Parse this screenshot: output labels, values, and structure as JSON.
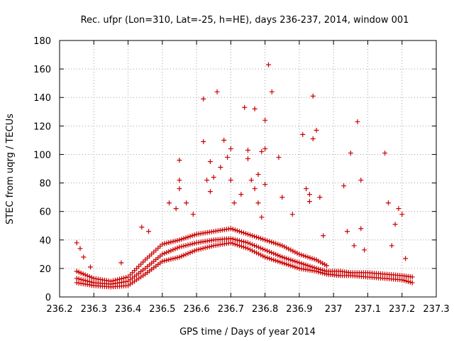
{
  "chart_data": {
    "type": "scatter",
    "title": "Rec. ufpr (Lon=310, Lat=-25, h=HE), days 236-237, 2014, window 001",
    "xlabel": "GPS time / Days of year 2014",
    "ylabel": "STEC from uqrg / TECUs",
    "xlim": [
      236.2,
      237.3
    ],
    "ylim": [
      0,
      180
    ],
    "xticks": [
      "236.2",
      "236.3",
      "236.4",
      "236.5",
      "236.6",
      "236.7",
      "236.8",
      "236.9",
      "237",
      "237.1",
      "237.2",
      "237.3"
    ],
    "yticks": [
      "0",
      "20",
      "40",
      "60",
      "80",
      "100",
      "120",
      "140",
      "160",
      "180"
    ],
    "grid": true,
    "legend": "none",
    "marker": "+",
    "color": "#cc0000",
    "bands": [
      {
        "x": [
          236.25,
          236.3,
          236.35,
          236.4,
          236.45,
          236.5,
          236.55,
          236.6,
          236.65,
          236.7,
          236.75,
          236.8,
          236.85,
          236.9,
          236.95,
          236.98,
          237.02,
          237.05,
          237.1,
          237.15,
          237.2,
          237.23
        ],
        "y": [
          10,
          8,
          7,
          8,
          16,
          25,
          28,
          33,
          36,
          38,
          34,
          28,
          24,
          20,
          18,
          16,
          15,
          15,
          14,
          13,
          12,
          10
        ]
      },
      {
        "x": [
          236.25,
          236.3,
          236.35,
          236.4,
          236.45,
          236.5,
          236.55,
          236.6,
          236.65,
          236.7,
          236.75,
          236.8,
          236.85,
          236.9,
          236.95,
          236.98,
          237.02,
          237.05,
          237.1,
          237.15,
          237.2,
          237.23
        ],
        "y": [
          13,
          10,
          9,
          11,
          20,
          30,
          35,
          38,
          40,
          41,
          38,
          33,
          28,
          24,
          20,
          18,
          18,
          17,
          17,
          16,
          15,
          14
        ]
      },
      {
        "x": [
          236.25,
          236.3,
          236.35,
          236.4,
          236.45,
          236.5,
          236.55,
          236.6,
          236.65,
          236.7,
          236.75,
          236.8,
          236.85,
          236.9,
          236.95,
          236.98
        ],
        "y": [
          18,
          13,
          11,
          14,
          26,
          37,
          40,
          44,
          46,
          48,
          44,
          40,
          36,
          30,
          26,
          22
        ]
      }
    ],
    "outliers": [
      {
        "x": 236.25,
        "y": 38
      },
      {
        "x": 236.26,
        "y": 34
      },
      {
        "x": 236.27,
        "y": 28
      },
      {
        "x": 236.29,
        "y": 21
      },
      {
        "x": 236.38,
        "y": 24
      },
      {
        "x": 236.44,
        "y": 49
      },
      {
        "x": 236.46,
        "y": 46
      },
      {
        "x": 236.52,
        "y": 66
      },
      {
        "x": 236.54,
        "y": 62
      },
      {
        "x": 236.55,
        "y": 96
      },
      {
        "x": 236.55,
        "y": 82
      },
      {
        "x": 236.55,
        "y": 76
      },
      {
        "x": 236.57,
        "y": 66
      },
      {
        "x": 236.59,
        "y": 58
      },
      {
        "x": 236.62,
        "y": 139
      },
      {
        "x": 236.62,
        "y": 109
      },
      {
        "x": 236.63,
        "y": 82
      },
      {
        "x": 236.64,
        "y": 95
      },
      {
        "x": 236.64,
        "y": 74
      },
      {
        "x": 236.65,
        "y": 84
      },
      {
        "x": 236.66,
        "y": 144
      },
      {
        "x": 236.67,
        "y": 91
      },
      {
        "x": 236.68,
        "y": 110
      },
      {
        "x": 236.69,
        "y": 98
      },
      {
        "x": 236.7,
        "y": 104
      },
      {
        "x": 236.7,
        "y": 82
      },
      {
        "x": 236.71,
        "y": 66
      },
      {
        "x": 236.73,
        "y": 72
      },
      {
        "x": 236.74,
        "y": 133
      },
      {
        "x": 236.75,
        "y": 103
      },
      {
        "x": 236.75,
        "y": 97
      },
      {
        "x": 236.76,
        "y": 82
      },
      {
        "x": 236.77,
        "y": 132
      },
      {
        "x": 236.77,
        "y": 76
      },
      {
        "x": 236.78,
        "y": 86
      },
      {
        "x": 236.78,
        "y": 66
      },
      {
        "x": 236.79,
        "y": 102
      },
      {
        "x": 236.79,
        "y": 56
      },
      {
        "x": 236.8,
        "y": 124
      },
      {
        "x": 236.8,
        "y": 104
      },
      {
        "x": 236.8,
        "y": 79
      },
      {
        "x": 236.81,
        "y": 163
      },
      {
        "x": 236.82,
        "y": 144
      },
      {
        "x": 236.84,
        "y": 98
      },
      {
        "x": 236.85,
        "y": 70
      },
      {
        "x": 236.88,
        "y": 58
      },
      {
        "x": 236.91,
        "y": 114
      },
      {
        "x": 236.92,
        "y": 76
      },
      {
        "x": 236.93,
        "y": 72
      },
      {
        "x": 236.93,
        "y": 67
      },
      {
        "x": 236.94,
        "y": 141
      },
      {
        "x": 236.94,
        "y": 111
      },
      {
        "x": 236.95,
        "y": 117
      },
      {
        "x": 236.96,
        "y": 70
      },
      {
        "x": 236.97,
        "y": 43
      },
      {
        "x": 237.03,
        "y": 78
      },
      {
        "x": 237.04,
        "y": 46
      },
      {
        "x": 237.05,
        "y": 101
      },
      {
        "x": 237.06,
        "y": 36
      },
      {
        "x": 237.07,
        "y": 123
      },
      {
        "x": 237.08,
        "y": 82
      },
      {
        "x": 237.08,
        "y": 48
      },
      {
        "x": 237.09,
        "y": 33
      },
      {
        "x": 237.15,
        "y": 101
      },
      {
        "x": 237.16,
        "y": 66
      },
      {
        "x": 237.17,
        "y": 36
      },
      {
        "x": 237.18,
        "y": 51
      },
      {
        "x": 237.19,
        "y": 62
      },
      {
        "x": 237.2,
        "y": 58
      },
      {
        "x": 237.21,
        "y": 27
      }
    ]
  }
}
